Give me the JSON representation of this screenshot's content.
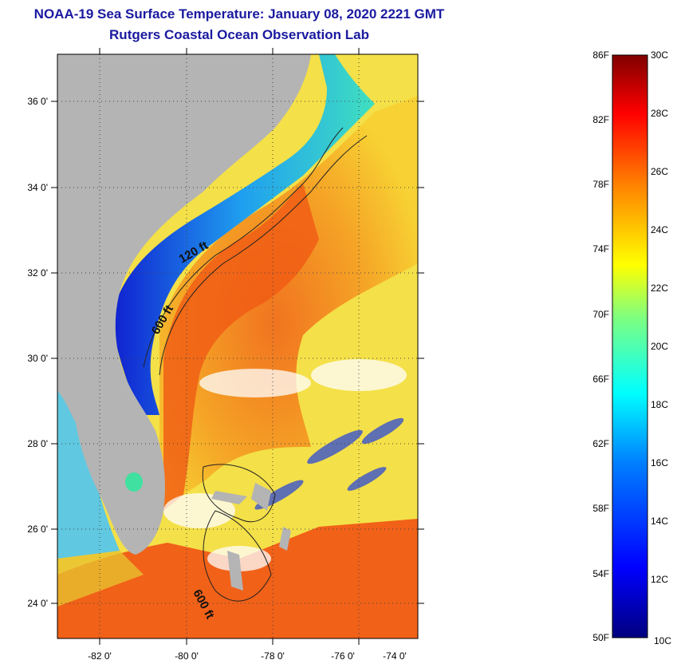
{
  "header": {
    "title": "NOAA-19 Sea Surface Temperature:  January 08, 2020 2221 GMT",
    "subtitle": "Rutgers Coastal Ocean Observation Lab"
  },
  "map": {
    "lat_ticks": [
      "36 0'",
      "34 0'",
      "32 0'",
      "30 0'",
      "28 0'",
      "26 0'",
      "24 0'"
    ],
    "lon_ticks": [
      "-82 0'",
      "-80 0'",
      "-78 0'",
      "-76 0'",
      "-74 0'"
    ],
    "contour_labels": [
      "120 ft",
      "600 ft",
      "600 ft"
    ],
    "colors": {
      "land": "#b4b4b4",
      "gulf_stream": "#f05a14",
      "shelf_cold": "#1c2cd6"
    }
  },
  "colorbar": {
    "fahrenheit_labels": [
      "86F",
      "82F",
      "78F",
      "74F",
      "70F",
      "66F",
      "62F",
      "58F",
      "54F",
      "50F"
    ],
    "celsius_labels": [
      "30C",
      "28C",
      "26C",
      "24C",
      "22C",
      "20C",
      "18C",
      "16C",
      "14C",
      "12C",
      "10C"
    ],
    "colors": [
      "#00007f",
      "#0000ff",
      "#007fff",
      "#00ffff",
      "#7fff7f",
      "#ffff00",
      "#ff7f00",
      "#ff0000",
      "#7f0000"
    ]
  }
}
